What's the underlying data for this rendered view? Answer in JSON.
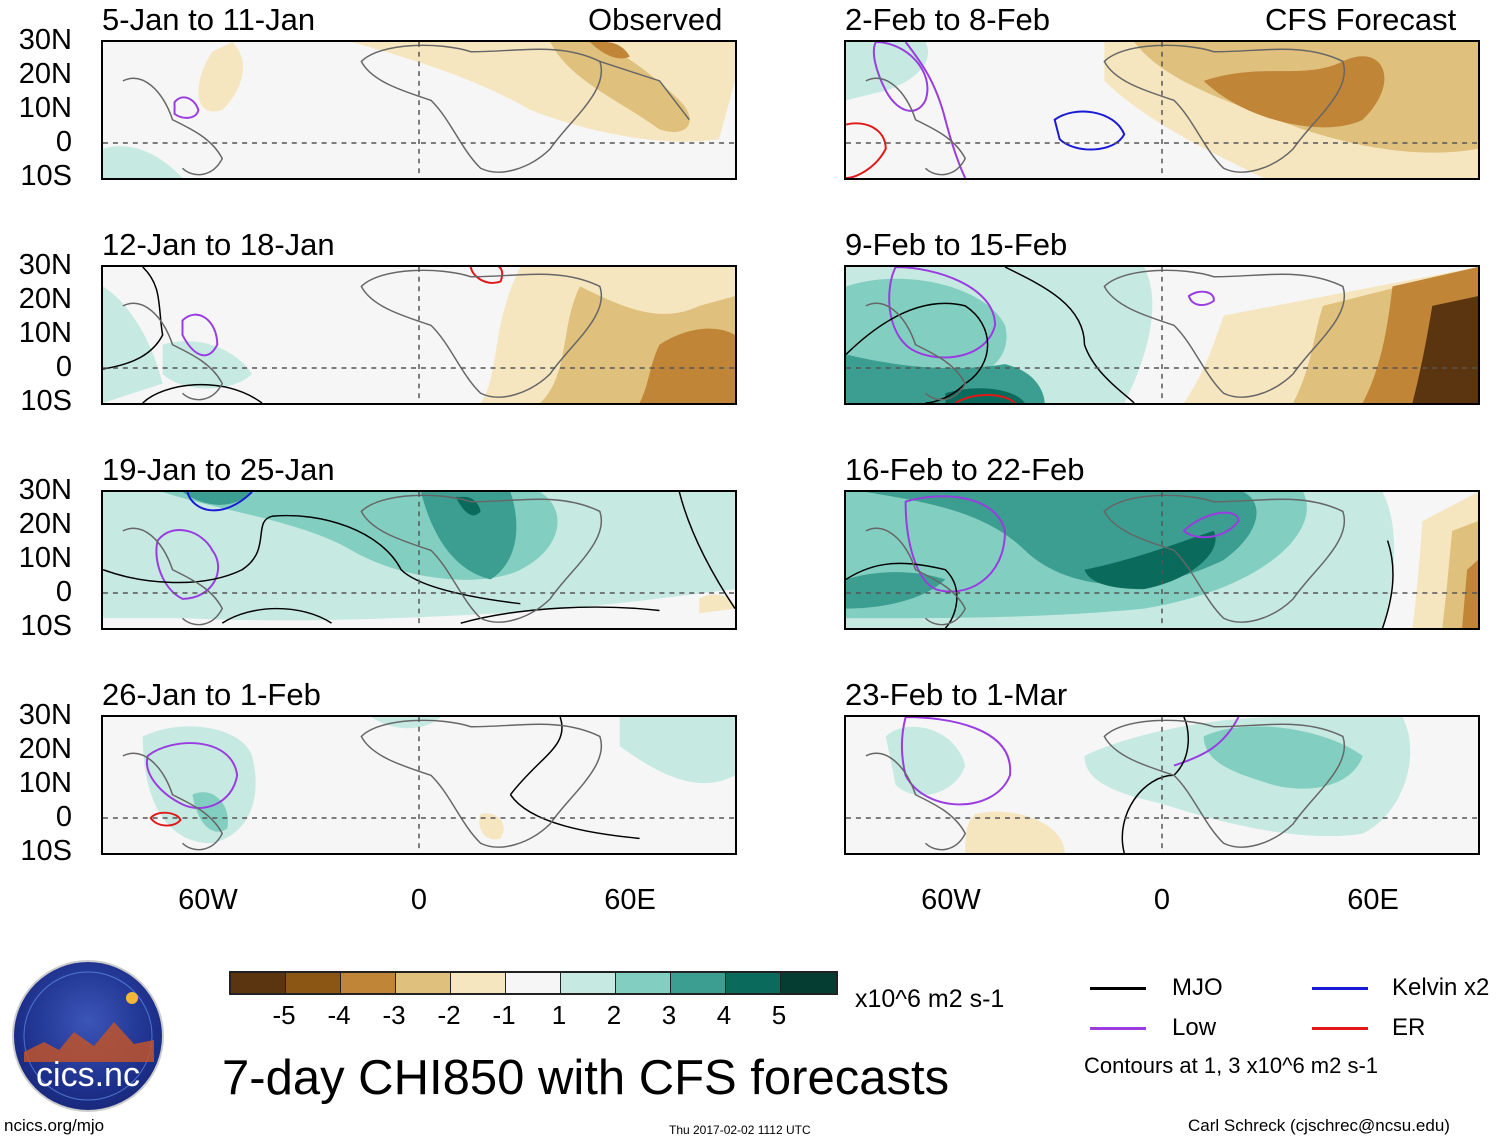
{
  "title": "7-day CHI850 with CFS forecasts",
  "lat_labels": [
    "30N",
    "20N",
    "10N",
    "0",
    "10S"
  ],
  "lon_labels": [
    "60W",
    "0",
    "60E"
  ],
  "left_column_tag": "Observed",
  "right_column_tag": "CFS Forecast",
  "panels": {
    "obs": [
      {
        "period": "5-Jan to 11-Jan"
      },
      {
        "period": "12-Jan to 18-Jan"
      },
      {
        "period": "19-Jan to 25-Jan"
      },
      {
        "period": "26-Jan to 1-Feb"
      }
    ],
    "fcst": [
      {
        "period": "2-Feb to 8-Feb"
      },
      {
        "period": "9-Feb to 15-Feb"
      },
      {
        "period": "16-Feb to 22-Feb"
      },
      {
        "period": "23-Feb to 1-Mar"
      }
    ]
  },
  "colorbar": {
    "colors": [
      "#5a3510",
      "#8b5514",
      "#c08536",
      "#dfc07c",
      "#f6e6c0",
      "#f6f6f6",
      "#c6eae2",
      "#82cfc1",
      "#3c9e90",
      "#0a6b5c",
      "#053d33"
    ],
    "ticks": [
      "-5",
      "-4",
      "-3",
      "-2",
      "-1",
      "1",
      "2",
      "3",
      "4",
      "5"
    ],
    "units": "x10^6 m2 s-1"
  },
  "legend": {
    "items": [
      {
        "label": "MJO",
        "color": "#000000"
      },
      {
        "label": "Kelvin x2",
        "color": "#1a1ad6"
      },
      {
        "label": "Low",
        "color": "#9a3ce0"
      },
      {
        "label": "ER",
        "color": "#e01818"
      }
    ],
    "contour_note": "Contours at 1, 3 x10^6 m2 s-1"
  },
  "logo": {
    "text": "cics.nc",
    "icon": "cics-nc-logo"
  },
  "footer": {
    "left": "ncics.org/mjo",
    "center": "Thu 2017-02-02 1112 UTC",
    "right": "Carl Schreck (cjschrec@ncsu.edu)"
  }
}
